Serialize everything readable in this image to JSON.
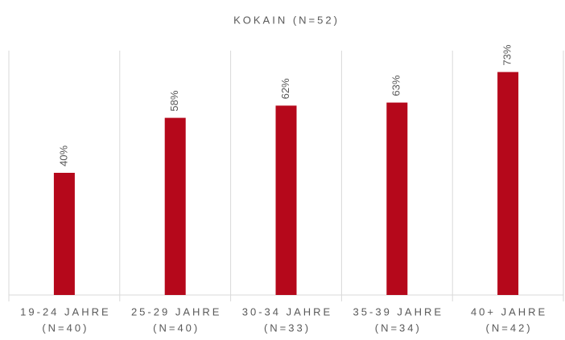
{
  "chart_data": {
    "type": "bar",
    "title": "KOKAIN (N=52)",
    "categories": [
      [
        "19-24 JAHRE",
        "(N=40)"
      ],
      [
        "25-29 JAHRE",
        "(N=40)"
      ],
      [
        "30-34 JAHRE",
        "(N=33)"
      ],
      [
        "35-39 JAHRE",
        "(N=34)"
      ],
      [
        "40+ JAHRE",
        "(N=42)"
      ]
    ],
    "values": [
      40,
      58,
      62,
      63,
      73
    ],
    "value_labels": [
      "40%",
      "58%",
      "62%",
      "63%",
      "73%"
    ],
    "color": "#b5081b",
    "ylim": [
      0,
      80
    ]
  }
}
